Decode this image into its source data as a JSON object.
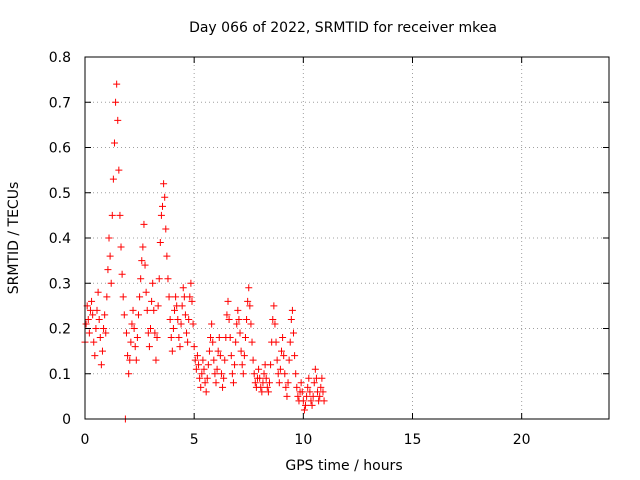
{
  "chart_data": {
    "type": "scatter",
    "title": "Day 066 of 2022, SRMTID for receiver mkea",
    "xlabel": "GPS time / hours",
    "ylabel": "SRMTID / TECUs",
    "xlim": [
      0,
      24
    ],
    "ylim": [
      0,
      0.8
    ],
    "xticks": [
      0,
      5,
      10,
      15,
      20
    ],
    "xtick_labels": [
      "0",
      "5",
      "10",
      "15",
      "20"
    ],
    "yticks": [
      0,
      0.1,
      0.2,
      0.3,
      0.4,
      0.5,
      0.6,
      0.7,
      0.8
    ],
    "ytick_labels": [
      "0",
      "0.1",
      "0.2",
      "0.3",
      "0.4",
      "0.5",
      "0.6",
      "0.7",
      "0.8"
    ],
    "grid": true,
    "marker": "+",
    "marker_color": "#ff0000",
    "series": [
      {
        "name": "mkea",
        "points": [
          [
            0.0,
            0.17
          ],
          [
            0.05,
            0.21
          ],
          [
            0.1,
            0.25
          ],
          [
            0.15,
            0.22
          ],
          [
            0.2,
            0.19
          ],
          [
            0.25,
            0.24
          ],
          [
            0.3,
            0.26
          ],
          [
            0.35,
            0.23
          ],
          [
            0.4,
            0.17
          ],
          [
            0.45,
            0.14
          ],
          [
            0.5,
            0.2
          ],
          [
            0.55,
            0.24
          ],
          [
            0.6,
            0.28
          ],
          [
            0.65,
            0.22
          ],
          [
            0.7,
            0.18
          ],
          [
            0.75,
            0.12
          ],
          [
            0.8,
            0.15
          ],
          [
            0.85,
            0.2
          ],
          [
            0.9,
            0.23
          ],
          [
            0.95,
            0.19
          ],
          [
            1.0,
            0.27
          ],
          [
            1.05,
            0.33
          ],
          [
            1.1,
            0.4
          ],
          [
            1.15,
            0.36
          ],
          [
            1.2,
            0.3
          ],
          [
            1.25,
            0.45
          ],
          [
            1.3,
            0.53
          ],
          [
            1.35,
            0.61
          ],
          [
            1.4,
            0.7
          ],
          [
            1.45,
            0.74
          ],
          [
            1.5,
            0.66
          ],
          [
            1.55,
            0.55
          ],
          [
            1.6,
            0.45
          ],
          [
            1.65,
            0.38
          ],
          [
            1.7,
            0.32
          ],
          [
            1.75,
            0.27
          ],
          [
            1.8,
            0.23
          ],
          [
            1.85,
            0.0
          ],
          [
            1.9,
            0.19
          ],
          [
            1.95,
            0.14
          ],
          [
            2.0,
            0.1
          ],
          [
            2.05,
            0.13
          ],
          [
            2.1,
            0.17
          ],
          [
            2.15,
            0.21
          ],
          [
            2.2,
            0.24
          ],
          [
            2.25,
            0.2
          ],
          [
            2.3,
            0.16
          ],
          [
            2.35,
            0.13
          ],
          [
            2.4,
            0.18
          ],
          [
            2.45,
            0.23
          ],
          [
            2.5,
            0.27
          ],
          [
            2.55,
            0.31
          ],
          [
            2.6,
            0.35
          ],
          [
            2.65,
            0.38
          ],
          [
            2.7,
            0.43
          ],
          [
            2.75,
            0.34
          ],
          [
            2.8,
            0.28
          ],
          [
            2.85,
            0.24
          ],
          [
            2.9,
            0.19
          ],
          [
            2.95,
            0.16
          ],
          [
            3.0,
            0.2
          ],
          [
            3.05,
            0.26
          ],
          [
            3.1,
            0.3
          ],
          [
            3.15,
            0.24
          ],
          [
            3.2,
            0.19
          ],
          [
            3.25,
            0.13
          ],
          [
            3.3,
            0.18
          ],
          [
            3.35,
            0.25
          ],
          [
            3.4,
            0.31
          ],
          [
            3.45,
            0.39
          ],
          [
            3.5,
            0.45
          ],
          [
            3.55,
            0.47
          ],
          [
            3.6,
            0.52
          ],
          [
            3.65,
            0.49
          ],
          [
            3.7,
            0.42
          ],
          [
            3.75,
            0.36
          ],
          [
            3.8,
            0.31
          ],
          [
            3.85,
            0.27
          ],
          [
            3.9,
            0.22
          ],
          [
            3.95,
            0.18
          ],
          [
            4.0,
            0.15
          ],
          [
            4.05,
            0.2
          ],
          [
            4.1,
            0.24
          ],
          [
            4.15,
            0.27
          ],
          [
            4.2,
            0.25
          ],
          [
            4.25,
            0.22
          ],
          [
            4.3,
            0.18
          ],
          [
            4.35,
            0.16
          ],
          [
            4.4,
            0.21
          ],
          [
            4.45,
            0.25
          ],
          [
            4.5,
            0.29
          ],
          [
            4.55,
            0.27
          ],
          [
            4.6,
            0.23
          ],
          [
            4.65,
            0.19
          ],
          [
            4.7,
            0.17
          ],
          [
            4.75,
            0.22
          ],
          [
            4.8,
            0.27
          ],
          [
            4.85,
            0.3
          ],
          [
            4.9,
            0.26
          ],
          [
            4.95,
            0.21
          ],
          [
            5.0,
            0.16
          ],
          [
            5.05,
            0.13
          ],
          [
            5.1,
            0.11
          ],
          [
            5.15,
            0.14
          ],
          [
            5.2,
            0.12
          ],
          [
            5.25,
            0.09
          ],
          [
            5.3,
            0.07
          ],
          [
            5.35,
            0.1
          ],
          [
            5.4,
            0.13
          ],
          [
            5.45,
            0.11
          ],
          [
            5.5,
            0.08
          ],
          [
            5.55,
            0.06
          ],
          [
            5.6,
            0.09
          ],
          [
            5.65,
            0.12
          ],
          [
            5.7,
            0.15
          ],
          [
            5.75,
            0.18
          ],
          [
            5.8,
            0.21
          ],
          [
            5.85,
            0.17
          ],
          [
            5.9,
            0.13
          ],
          [
            5.95,
            0.1
          ],
          [
            6.0,
            0.08
          ],
          [
            6.05,
            0.11
          ],
          [
            6.1,
            0.15
          ],
          [
            6.15,
            0.18
          ],
          [
            6.2,
            0.14
          ],
          [
            6.25,
            0.1
          ],
          [
            6.3,
            0.07
          ],
          [
            6.35,
            0.09
          ],
          [
            6.4,
            0.13
          ],
          [
            6.45,
            0.18
          ],
          [
            6.5,
            0.23
          ],
          [
            6.55,
            0.26
          ],
          [
            6.6,
            0.22
          ],
          [
            6.65,
            0.18
          ],
          [
            6.7,
            0.14
          ],
          [
            6.75,
            0.1
          ],
          [
            6.8,
            0.08
          ],
          [
            6.85,
            0.12
          ],
          [
            6.9,
            0.17
          ],
          [
            6.95,
            0.21
          ],
          [
            7.0,
            0.24
          ],
          [
            7.05,
            0.22
          ],
          [
            7.1,
            0.19
          ],
          [
            7.15,
            0.15
          ],
          [
            7.2,
            0.12
          ],
          [
            7.25,
            0.1
          ],
          [
            7.3,
            0.14
          ],
          [
            7.35,
            0.18
          ],
          [
            7.4,
            0.22
          ],
          [
            7.45,
            0.26
          ],
          [
            7.5,
            0.29
          ],
          [
            7.55,
            0.25
          ],
          [
            7.6,
            0.21
          ],
          [
            7.65,
            0.17
          ],
          [
            7.7,
            0.13
          ],
          [
            7.75,
            0.1
          ],
          [
            7.8,
            0.08
          ],
          [
            7.85,
            0.07
          ],
          [
            7.9,
            0.09
          ],
          [
            7.95,
            0.11
          ],
          [
            8.0,
            0.09
          ],
          [
            8.05,
            0.07
          ],
          [
            8.1,
            0.06
          ],
          [
            8.15,
            0.08
          ],
          [
            8.2,
            0.1
          ],
          [
            8.25,
            0.12
          ],
          [
            8.3,
            0.09
          ],
          [
            8.35,
            0.07
          ],
          [
            8.4,
            0.06
          ],
          [
            8.45,
            0.08
          ],
          [
            8.5,
            0.12
          ],
          [
            8.55,
            0.17
          ],
          [
            8.6,
            0.22
          ],
          [
            8.65,
            0.25
          ],
          [
            8.7,
            0.21
          ],
          [
            8.75,
            0.17
          ],
          [
            8.8,
            0.13
          ],
          [
            8.85,
            0.1
          ],
          [
            8.9,
            0.08
          ],
          [
            8.95,
            0.11
          ],
          [
            9.0,
            0.15
          ],
          [
            9.05,
            0.18
          ],
          [
            9.1,
            0.14
          ],
          [
            9.15,
            0.1
          ],
          [
            9.2,
            0.07
          ],
          [
            9.25,
            0.05
          ],
          [
            9.3,
            0.08
          ],
          [
            9.35,
            0.13
          ],
          [
            9.4,
            0.17
          ],
          [
            9.45,
            0.22
          ],
          [
            9.5,
            0.24
          ],
          [
            9.55,
            0.19
          ],
          [
            9.6,
            0.14
          ],
          [
            9.65,
            0.1
          ],
          [
            9.7,
            0.07
          ],
          [
            9.75,
            0.05
          ],
          [
            9.8,
            0.04
          ],
          [
            9.85,
            0.06
          ],
          [
            9.9,
            0.08
          ],
          [
            9.95,
            0.06
          ],
          [
            10.0,
            0.04
          ],
          [
            10.05,
            0.02
          ],
          [
            10.1,
            0.03
          ],
          [
            10.15,
            0.05
          ],
          [
            10.2,
            0.07
          ],
          [
            10.25,
            0.09
          ],
          [
            10.3,
            0.06
          ],
          [
            10.35,
            0.04
          ],
          [
            10.4,
            0.03
          ],
          [
            10.45,
            0.05
          ],
          [
            10.5,
            0.08
          ],
          [
            10.55,
            0.11
          ],
          [
            10.6,
            0.09
          ],
          [
            10.65,
            0.06
          ],
          [
            10.7,
            0.04
          ],
          [
            10.75,
            0.05
          ],
          [
            10.8,
            0.07
          ],
          [
            10.85,
            0.09
          ],
          [
            10.9,
            0.06
          ],
          [
            10.95,
            0.04
          ]
        ]
      }
    ]
  }
}
